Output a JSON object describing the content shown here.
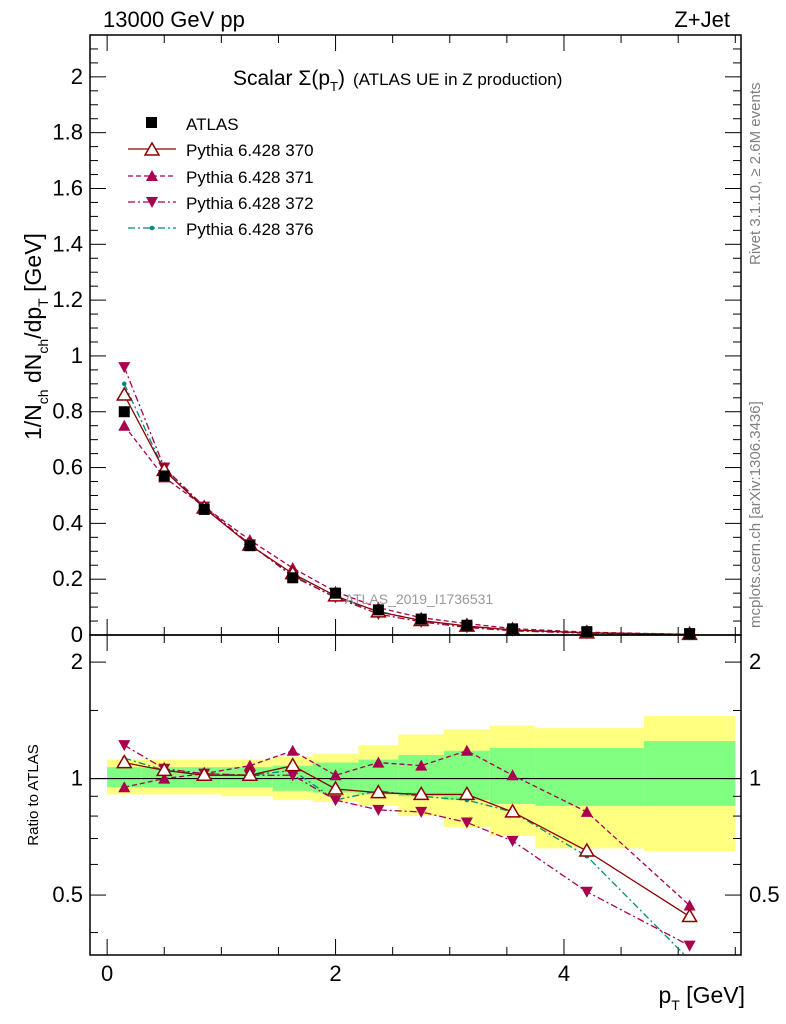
{
  "header": {
    "left": "13000 GeV pp",
    "right": "Z+Jet"
  },
  "side_labels": {
    "rivet": "Rivet 3.1.10, ≥ 2.6M events",
    "mcplots": "mcplots.cern.ch [arXiv:1306.3436]"
  },
  "watermark": "ATLAS_2019_I1736531",
  "colors": {
    "data": "#000000",
    "s370": "#8b0000",
    "s371": "#a8004f",
    "s372": "#a8004f",
    "s376": "#008b7a",
    "band_yellow": "#ffff80",
    "band_green": "#80ff80"
  },
  "chart_data": [
    {
      "type": "line",
      "title": "Scalar Σ(p_T) (ATLAS UE in Z production)",
      "title_parts": {
        "main": "Scalar Σ(p",
        "sub": "T",
        "tail": ")",
        "small": "(ATLAS UE in Z production)"
      },
      "ylabel": "1/N_ch dN_ch/dp_T [GeV]",
      "ylabel_parts": {
        "a": "1/N",
        "a_sub": "ch",
        "b": " dN",
        "b_sub": "ch",
        "c": "/dp",
        "c_sub": "T",
        "d": " [GeV]"
      },
      "xlim": [
        -0.15,
        5.55
      ],
      "ylim": [
        0,
        2.15
      ],
      "yticks": [
        0,
        0.2,
        0.4,
        0.6,
        0.8,
        1,
        1.2,
        1.4,
        1.6,
        1.8,
        2
      ],
      "ytick_labels": [
        "0",
        "0.2",
        "0.4",
        "0.6",
        "0.8",
        "1",
        "1.2",
        "1.4",
        "1.6",
        "1.8",
        "2"
      ],
      "legend_position": "top-left",
      "x": [
        0.15,
        0.5,
        0.85,
        1.25,
        1.625,
        2.0,
        2.375,
        2.75,
        3.15,
        3.55,
        4.2,
        5.1
      ],
      "series": [
        {
          "name": "ATLAS",
          "marker": "square",
          "values": [
            0.8,
            0.57,
            0.45,
            0.32,
            0.205,
            0.15,
            0.09,
            0.057,
            0.035,
            0.022,
            0.012,
            0.005
          ]
        },
        {
          "name": "Pythia 6.428 370",
          "marker": "triangle-open",
          "line": "solid",
          "values": [
            0.86,
            0.59,
            0.455,
            0.322,
            0.22,
            0.14,
            0.083,
            0.052,
            0.032,
            0.018,
            0.0078,
            0.0022
          ]
        },
        {
          "name": "Pythia 6.428 371",
          "marker": "triangle-up",
          "line": "dashed",
          "values": [
            0.75,
            0.565,
            0.46,
            0.34,
            0.24,
            0.155,
            0.098,
            0.062,
            0.041,
            0.023,
            0.01,
            0.0023
          ]
        },
        {
          "name": "Pythia 6.428 372",
          "marker": "triangle-down",
          "line": "dashdot",
          "values": [
            0.96,
            0.6,
            0.46,
            0.325,
            0.21,
            0.135,
            0.075,
            0.047,
            0.027,
            0.015,
            0.006,
            0.0019
          ]
        },
        {
          "name": "Pythia 6.428 376",
          "marker": "dot",
          "line": "dashdot",
          "values": [
            0.9,
            0.59,
            0.46,
            0.325,
            0.215,
            0.133,
            0.085,
            0.051,
            0.031,
            0.018,
            0.0077,
            0.0017
          ]
        }
      ]
    },
    {
      "type": "line",
      "title": "",
      "xlabel": "p_T [GeV]",
      "xlabel_parts": {
        "a": "p",
        "sub": "T",
        "b": " [GeV]"
      },
      "ylabel": "Ratio to ATLAS",
      "xlim": [
        -0.15,
        5.55
      ],
      "ylim": [
        0.35,
        2.35
      ],
      "xticks": [
        0,
        2,
        4
      ],
      "xtick_labels": [
        "0",
        "2",
        "4"
      ],
      "yticks": [
        0.5,
        1,
        2
      ],
      "ytick_labels": [
        "0.5",
        "1",
        "2"
      ],
      "x": [
        0.15,
        0.5,
        0.85,
        1.25,
        1.625,
        2.0,
        2.375,
        2.75,
        3.15,
        3.55,
        4.2,
        5.1
      ],
      "bins": [
        [
          0,
          0.3
        ],
        [
          0.3,
          0.7
        ],
        [
          0.7,
          1.0
        ],
        [
          1.0,
          1.45
        ],
        [
          1.45,
          1.8
        ],
        [
          1.8,
          2.2
        ],
        [
          2.2,
          2.55
        ],
        [
          2.55,
          2.95
        ],
        [
          2.95,
          3.35
        ],
        [
          3.35,
          3.75
        ],
        [
          3.75,
          4.7
        ],
        [
          4.7,
          5.5
        ]
      ],
      "band_yellow": [
        [
          0.91,
          1.12
        ],
        [
          0.91,
          1.12
        ],
        [
          0.91,
          1.12
        ],
        [
          0.9,
          1.12
        ],
        [
          0.88,
          1.14
        ],
        [
          0.87,
          1.16
        ],
        [
          0.85,
          1.22
        ],
        [
          0.8,
          1.3
        ],
        [
          0.75,
          1.34
        ],
        [
          0.71,
          1.37
        ],
        [
          0.66,
          1.35
        ],
        [
          0.65,
          1.45
        ]
      ],
      "band_green": [
        [
          0.95,
          1.07
        ],
        [
          0.95,
          1.07
        ],
        [
          0.95,
          1.07
        ],
        [
          0.95,
          1.07
        ],
        [
          0.93,
          1.08
        ],
        [
          0.92,
          1.1
        ],
        [
          0.91,
          1.12
        ],
        [
          0.9,
          1.15
        ],
        [
          0.88,
          1.18
        ],
        [
          0.86,
          1.2
        ],
        [
          0.85,
          1.2
        ],
        [
          0.85,
          1.25
        ]
      ],
      "series": [
        {
          "name": "Pythia 6.428 370",
          "values": [
            1.1,
            1.05,
            1.02,
            1.02,
            1.08,
            0.94,
            0.92,
            0.91,
            0.91,
            0.82,
            0.65,
            0.44
          ]
        },
        {
          "name": "Pythia 6.428 371",
          "values": [
            0.95,
            1.0,
            1.03,
            1.08,
            1.18,
            1.02,
            1.1,
            1.08,
            1.18,
            1.02,
            0.82,
            0.47
          ]
        },
        {
          "name": "Pythia 6.428 372",
          "values": [
            1.22,
            1.06,
            1.03,
            1.02,
            1.02,
            0.88,
            0.83,
            0.82,
            0.77,
            0.69,
            0.51,
            0.37
          ]
        },
        {
          "name": "Pythia 6.428 376",
          "values": [
            1.13,
            1.05,
            1.03,
            1.02,
            1.05,
            0.88,
            0.93,
            0.9,
            0.88,
            0.82,
            0.63,
            0.34
          ]
        }
      ]
    }
  ]
}
